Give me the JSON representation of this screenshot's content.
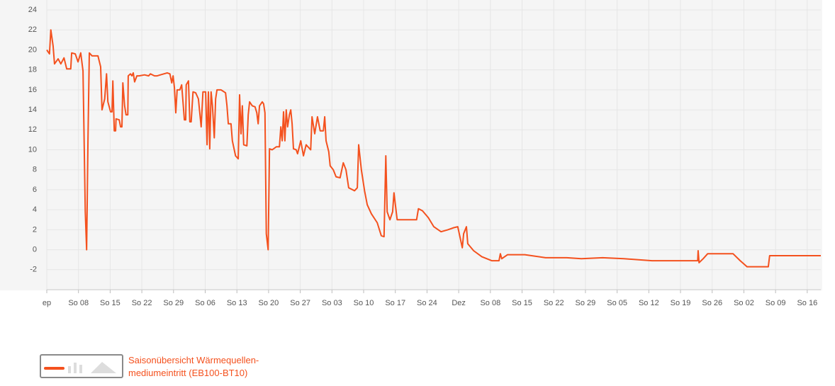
{
  "chart_data": {
    "type": "line",
    "x": [
      0,
      0.6,
      0.9,
      1.4,
      1.7,
      2.5,
      3.1,
      3.8,
      4.4,
      5.3,
      5.5,
      6.3,
      6.9,
      7.5,
      8.0,
      8.5,
      8.8,
      9.1,
      9.4,
      10.0,
      11.3,
      11.9,
      12.2,
      12.8,
      13.2,
      13.5,
      14.1,
      14.4,
      14.6,
      14.9,
      15.2,
      15.3,
      16.0,
      16.3,
      16.6,
      16.8,
      17.2,
      17.5,
      17.9,
      18.0,
      18.5,
      18.8,
      19.1,
      19.4,
      19.9,
      20.4,
      21.6,
      22.5,
      22.9,
      23.8,
      24.4,
      25.1,
      26.6,
      27.2,
      27.6,
      27.9,
      28.2,
      28.5,
      28.8,
      29.4,
      29.8,
      30.4,
      30.7,
      30.8,
      31.3,
      31.6,
      31.9,
      32.3,
      32.9,
      33.5,
      34.1,
      34.5,
      35.1,
      35.4,
      35.7,
      36.0,
      36.3,
      36.6,
      37.0,
      37.3,
      37.6,
      38.5,
      39.5,
      39.8,
      40.1,
      40.7,
      41.0,
      41.7,
      42.3,
      42.6,
      42.9,
      43.2,
      43.5,
      44.2,
      44.5,
      44.8,
      45.4,
      46.0,
      46.4,
      46.7,
      47.0,
      47.6,
      47.9,
      48.2,
      48.5,
      48.9,
      49.2,
      49.8,
      50.7,
      51.4,
      51.7,
      52.0,
      52.3,
      52.6,
      52.9,
      53.2,
      53.6,
      53.9,
      54.2,
      54.5,
      55.1,
      55.4,
      56.1,
      56.7,
      57.3,
      58.3,
      58.6,
      59.2,
      59.8,
      60.4,
      61.1,
      61.4,
      61.7,
      62.3,
      62.6,
      63.3,
      63.9,
      64.8,
      65.5,
      66.1,
      66.7,
      68.0,
      68.6,
      68.9,
      69.5,
      70.2,
      70.8,
      71.7,
      73.0,
      73.9,
      74.5,
      74.9,
      75.2,
      75.8,
      76.4,
      76.7,
      77.4,
      78.3,
      80.2,
      81.7,
      82.1,
      83.0,
      84.3,
      85.5,
      87.1,
      88.6,
      89.9,
      90.8,
      91.8,
      92.1,
      92.7,
      93.0,
      94.3,
      96.1,
      98.3,
      99.9,
      100.2,
      100.5,
      101.8,
      105.6,
      110.2,
      114.9,
      118.1,
      122.8,
      127.5,
      133.7,
      143.8,
      143.9,
      144.1,
      145.0,
      146.0,
      147.8,
      151.6,
      153.2,
      154.7,
      159.4,
      159.7,
      171.0
    ],
    "series": [
      {
        "name": "Saisonübersicht Wärmequellen-mediumeintritt (EB100-BT10)",
        "color": "#f4511e",
        "values": [
          20.0,
          19.6,
          22,
          20.4,
          18.6,
          19.1,
          18.6,
          19.2,
          18.1,
          18.1,
          19.7,
          19.6,
          18.8,
          19.7,
          17.9,
          3.8,
          0,
          10.9,
          19.7,
          19.4,
          19.4,
          18.3,
          14,
          15.1,
          17.6,
          14.8,
          13.8,
          13.8,
          16.9,
          11.9,
          11.9,
          13.1,
          13,
          12.3,
          12.3,
          16.7,
          14.4,
          13.5,
          13.5,
          17.4,
          17.6,
          17.4,
          17.7,
          16.8,
          17.4,
          17.4,
          17.5,
          17.4,
          17.6,
          17.4,
          17.4,
          17.5,
          17.7,
          17.6,
          16.7,
          17.4,
          16.2,
          13.7,
          16,
          16,
          16.5,
          13,
          13,
          16.5,
          16.9,
          12.8,
          12.8,
          15.8,
          15.7,
          15.1,
          12.3,
          15.8,
          15.8,
          10.5,
          15.8,
          10.1,
          15.8,
          14.4,
          11.2,
          15.1,
          16,
          16,
          15.7,
          14.4,
          12.6,
          12.6,
          10.9,
          9.4,
          9.1,
          15.5,
          11.6,
          14.4,
          10.5,
          10.4,
          13.5,
          14.8,
          14.4,
          14.3,
          13.7,
          12.6,
          14.4,
          14.8,
          14.6,
          13.7,
          1.6,
          0,
          10.1,
          10,
          10.3,
          10.3,
          12.3,
          10.9,
          13.8,
          10.9,
          14,
          12.3,
          13.5,
          14,
          12.6,
          10.1,
          10,
          9.6,
          10.9,
          9.4,
          10.5,
          10,
          13.3,
          11.6,
          13.3,
          11.9,
          11.9,
          13.3,
          10.9,
          9.8,
          8.4,
          8,
          7.3,
          7.2,
          8.7,
          8,
          6.2,
          5.9,
          6.2,
          10.5,
          8,
          5.9,
          4.5,
          3.6,
          2.7,
          1.4,
          1.3,
          9.4,
          3.8,
          3.0,
          3.8,
          5.7,
          3.0,
          3.0,
          3.0,
          3.0,
          4.1,
          3.9,
          3.2,
          2.3,
          1.8,
          2.0,
          2.2,
          2.3,
          0.2,
          1.6,
          2.3,
          0.6,
          -0.1,
          -0.7,
          -1.1,
          -1.1,
          -0.4,
          -0.9,
          -0.5,
          -0.5,
          -0.8,
          -0.8,
          -0.9,
          -0.8,
          -0.9,
          -1.1,
          -1.1,
          -0.1,
          -1.3,
          -0.9,
          -0.4,
          -0.4,
          -0.4,
          -1.1,
          -1.7,
          -1.7,
          -0.6,
          -0.6
        ]
      }
    ],
    "xlim": [
      0,
      171
    ],
    "xticks": [
      {
        "value": 0,
        "label": "ep"
      },
      {
        "value": 7,
        "label": "So 08"
      },
      {
        "value": 14,
        "label": "So 15"
      },
      {
        "value": 21,
        "label": "So 22"
      },
      {
        "value": 28,
        "label": "So 29"
      },
      {
        "value": 35,
        "label": "So 06"
      },
      {
        "value": 42,
        "label": "So 13"
      },
      {
        "value": 49,
        "label": "So 20"
      },
      {
        "value": 56,
        "label": "So 27"
      },
      {
        "value": 63,
        "label": "So 03"
      },
      {
        "value": 70,
        "label": "So 10"
      },
      {
        "value": 77,
        "label": "So 17"
      },
      {
        "value": 84,
        "label": "So 24"
      },
      {
        "value": 91,
        "label": "Dez"
      },
      {
        "value": 98,
        "label": "So 08"
      },
      {
        "value": 105,
        "label": "So 15"
      },
      {
        "value": 112,
        "label": "So 22"
      },
      {
        "value": 119,
        "label": "So 29"
      },
      {
        "value": 126,
        "label": "So 05"
      },
      {
        "value": 133,
        "label": "So 12"
      },
      {
        "value": 140,
        "label": "So 19"
      },
      {
        "value": 147,
        "label": "So 26"
      },
      {
        "value": 154,
        "label": "So 02"
      },
      {
        "value": 161,
        "label": "So 09"
      },
      {
        "value": 168,
        "label": "So 16"
      }
    ],
    "ylim": [
      -4,
      24
    ],
    "yticks": [
      -2,
      0,
      2,
      4,
      6,
      8,
      10,
      12,
      14,
      16,
      18,
      20,
      22,
      24
    ],
    "grid": true
  }
}
